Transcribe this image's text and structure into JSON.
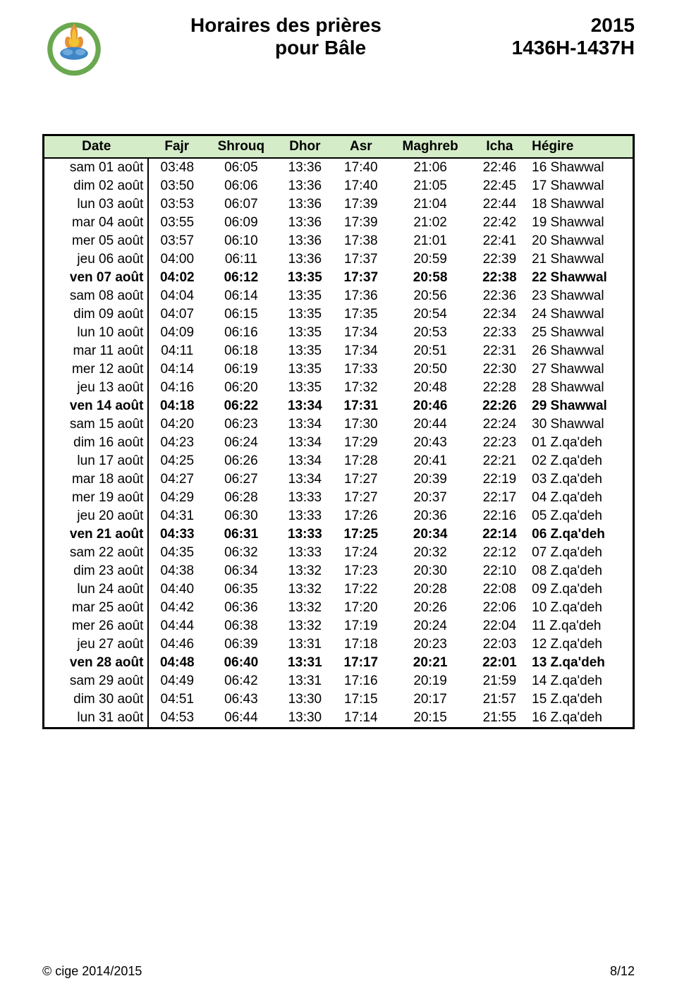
{
  "header": {
    "title": "Horaires des prières",
    "subtitle": "pour Bâle",
    "year": "2015",
    "hijri": "1436H-1437H"
  },
  "table": {
    "columns": [
      "Date",
      "Fajr",
      "Shrouq",
      "Dhor",
      "Asr",
      "Maghreb",
      "Icha",
      "Hégire"
    ],
    "rows": [
      {
        "bold": false,
        "cells": [
          "sam 01 août",
          "03:48",
          "06:05",
          "13:36",
          "17:40",
          "21:06",
          "22:46",
          "16 Shawwal"
        ]
      },
      {
        "bold": false,
        "cells": [
          "dim 02 août",
          "03:50",
          "06:06",
          "13:36",
          "17:40",
          "21:05",
          "22:45",
          "17 Shawwal"
        ]
      },
      {
        "bold": false,
        "cells": [
          "lun 03 août",
          "03:53",
          "06:07",
          "13:36",
          "17:39",
          "21:04",
          "22:44",
          "18 Shawwal"
        ]
      },
      {
        "bold": false,
        "cells": [
          "mar 04 août",
          "03:55",
          "06:09",
          "13:36",
          "17:39",
          "21:02",
          "22:42",
          "19 Shawwal"
        ]
      },
      {
        "bold": false,
        "cells": [
          "mer 05 août",
          "03:57",
          "06:10",
          "13:36",
          "17:38",
          "21:01",
          "22:41",
          "20 Shawwal"
        ]
      },
      {
        "bold": false,
        "cells": [
          "jeu 06 août",
          "04:00",
          "06:11",
          "13:36",
          "17:37",
          "20:59",
          "22:39",
          "21 Shawwal"
        ]
      },
      {
        "bold": true,
        "cells": [
          "ven 07 août",
          "04:02",
          "06:12",
          "13:35",
          "17:37",
          "20:58",
          "22:38",
          "22 Shawwal"
        ]
      },
      {
        "bold": false,
        "cells": [
          "sam 08 août",
          "04:04",
          "06:14",
          "13:35",
          "17:36",
          "20:56",
          "22:36",
          "23 Shawwal"
        ]
      },
      {
        "bold": false,
        "cells": [
          "dim 09 août",
          "04:07",
          "06:15",
          "13:35",
          "17:35",
          "20:54",
          "22:34",
          "24 Shawwal"
        ]
      },
      {
        "bold": false,
        "cells": [
          "lun 10 août",
          "04:09",
          "06:16",
          "13:35",
          "17:34",
          "20:53",
          "22:33",
          "25 Shawwal"
        ]
      },
      {
        "bold": false,
        "cells": [
          "mar 11 août",
          "04:11",
          "06:18",
          "13:35",
          "17:34",
          "20:51",
          "22:31",
          "26 Shawwal"
        ]
      },
      {
        "bold": false,
        "cells": [
          "mer 12 août",
          "04:14",
          "06:19",
          "13:35",
          "17:33",
          "20:50",
          "22:30",
          "27 Shawwal"
        ]
      },
      {
        "bold": false,
        "cells": [
          "jeu 13 août",
          "04:16",
          "06:20",
          "13:35",
          "17:32",
          "20:48",
          "22:28",
          "28 Shawwal"
        ]
      },
      {
        "bold": true,
        "cells": [
          "ven 14 août",
          "04:18",
          "06:22",
          "13:34",
          "17:31",
          "20:46",
          "22:26",
          "29 Shawwal"
        ]
      },
      {
        "bold": false,
        "cells": [
          "sam 15 août",
          "04:20",
          "06:23",
          "13:34",
          "17:30",
          "20:44",
          "22:24",
          "30 Shawwal"
        ]
      },
      {
        "bold": false,
        "cells": [
          "dim 16 août",
          "04:23",
          "06:24",
          "13:34",
          "17:29",
          "20:43",
          "22:23",
          "01 Z.qa'deh"
        ]
      },
      {
        "bold": false,
        "cells": [
          "lun 17 août",
          "04:25",
          "06:26",
          "13:34",
          "17:28",
          "20:41",
          "22:21",
          "02 Z.qa'deh"
        ]
      },
      {
        "bold": false,
        "cells": [
          "mar 18 août",
          "04:27",
          "06:27",
          "13:34",
          "17:27",
          "20:39",
          "22:19",
          "03 Z.qa'deh"
        ]
      },
      {
        "bold": false,
        "cells": [
          "mer 19 août",
          "04:29",
          "06:28",
          "13:33",
          "17:27",
          "20:37",
          "22:17",
          "04 Z.qa'deh"
        ]
      },
      {
        "bold": false,
        "cells": [
          "jeu 20 août",
          "04:31",
          "06:30",
          "13:33",
          "17:26",
          "20:36",
          "22:16",
          "05 Z.qa'deh"
        ]
      },
      {
        "bold": true,
        "cells": [
          "ven 21 août",
          "04:33",
          "06:31",
          "13:33",
          "17:25",
          "20:34",
          "22:14",
          "06 Z.qa'deh"
        ]
      },
      {
        "bold": false,
        "cells": [
          "sam 22 août",
          "04:35",
          "06:32",
          "13:33",
          "17:24",
          "20:32",
          "22:12",
          "07 Z.qa'deh"
        ]
      },
      {
        "bold": false,
        "cells": [
          "dim 23 août",
          "04:38",
          "06:34",
          "13:32",
          "17:23",
          "20:30",
          "22:10",
          "08 Z.qa'deh"
        ]
      },
      {
        "bold": false,
        "cells": [
          "lun 24 août",
          "04:40",
          "06:35",
          "13:32",
          "17:22",
          "20:28",
          "22:08",
          "09 Z.qa'deh"
        ]
      },
      {
        "bold": false,
        "cells": [
          "mar 25 août",
          "04:42",
          "06:36",
          "13:32",
          "17:20",
          "20:26",
          "22:06",
          "10 Z.qa'deh"
        ]
      },
      {
        "bold": false,
        "cells": [
          "mer 26 août",
          "04:44",
          "06:38",
          "13:32",
          "17:19",
          "20:24",
          "22:04",
          "11 Z.qa'deh"
        ]
      },
      {
        "bold": false,
        "cells": [
          "jeu 27 août",
          "04:46",
          "06:39",
          "13:31",
          "17:18",
          "20:23",
          "22:03",
          "12 Z.qa'deh"
        ]
      },
      {
        "bold": true,
        "cells": [
          "ven 28 août",
          "04:48",
          "06:40",
          "13:31",
          "17:17",
          "20:21",
          "22:01",
          "13 Z.qa'deh"
        ]
      },
      {
        "bold": false,
        "cells": [
          "sam 29 août",
          "04:49",
          "06:42",
          "13:31",
          "17:16",
          "20:19",
          "21:59",
          "14 Z.qa'deh"
        ]
      },
      {
        "bold": false,
        "cells": [
          "dim 30 août",
          "04:51",
          "06:43",
          "13:30",
          "17:15",
          "20:17",
          "21:57",
          "15 Z.qa'deh"
        ]
      },
      {
        "bold": false,
        "cells": [
          "lun 31 août",
          "04:53",
          "06:44",
          "13:30",
          "17:14",
          "20:15",
          "21:55",
          "16 Z.qa'deh"
        ]
      }
    ]
  },
  "footer": {
    "copyright": "© cige 2014/2015",
    "page": "8/12"
  },
  "logo": {
    "ring_outer": "#6aa84f",
    "ring_inner": "#ffffff",
    "flame_outer": "#e69138",
    "flame_inner": "#f1c232",
    "hands": "#3d85c6"
  }
}
